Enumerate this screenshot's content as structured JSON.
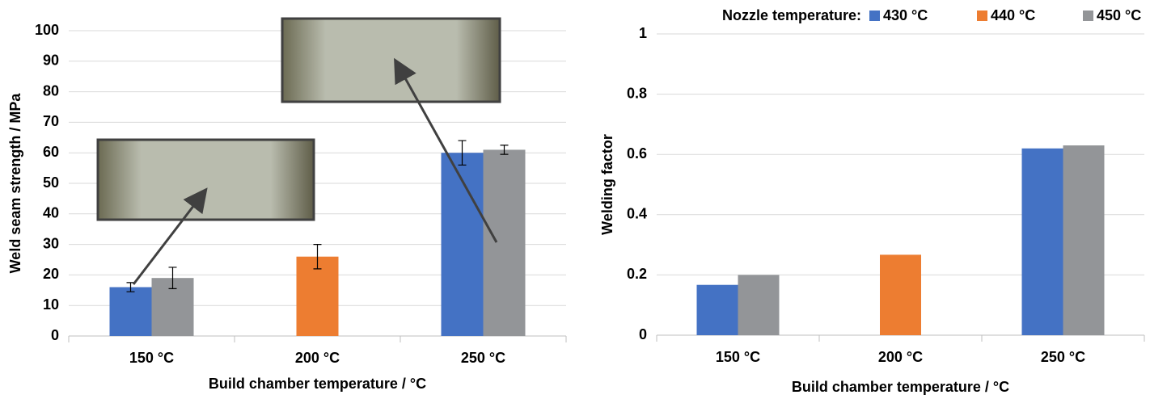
{
  "chart_data": [
    {
      "type": "bar",
      "y_label": "Weld seam strength / MPa",
      "x_label": "Build chamber temperature / °C",
      "categories": [
        "150 °C",
        "200 °C",
        "250 °C"
      ],
      "series": [
        {
          "name": "430 °C",
          "color": "#4472c4",
          "values": [
            16,
            null,
            60
          ],
          "errors": [
            1.5,
            null,
            4
          ]
        },
        {
          "name": "440 °C",
          "color": "#ed7d31",
          "values": [
            null,
            26,
            null
          ],
          "errors": [
            null,
            4,
            null
          ]
        },
        {
          "name": "450 °C",
          "color": "#939598",
          "values": [
            19,
            null,
            61
          ],
          "errors": [
            3.5,
            null,
            1.5
          ]
        }
      ],
      "ylim": [
        0,
        100
      ],
      "yticks": [
        0,
        10,
        20,
        30,
        40,
        50,
        60,
        70,
        80,
        90,
        100
      ],
      "grid": true
    },
    {
      "type": "bar",
      "y_label": "Welding factor",
      "x_label": "Build chamber temperature / °C",
      "legend_title": "Nozzle temperature:",
      "categories": [
        "150 °C",
        "200 °C",
        "250 °C"
      ],
      "series": [
        {
          "name": "430 °C",
          "color": "#4472c4",
          "values": [
            0.167,
            null,
            0.62
          ]
        },
        {
          "name": "440 °C",
          "color": "#ed7d31",
          "values": [
            null,
            0.267,
            null
          ]
        },
        {
          "name": "450 °C",
          "color": "#939598",
          "values": [
            0.2,
            null,
            0.63
          ]
        }
      ],
      "ylim": [
        0,
        1
      ],
      "yticks": [
        0,
        0.2,
        0.4,
        0.6,
        0.8,
        1
      ],
      "grid": true
    }
  ]
}
